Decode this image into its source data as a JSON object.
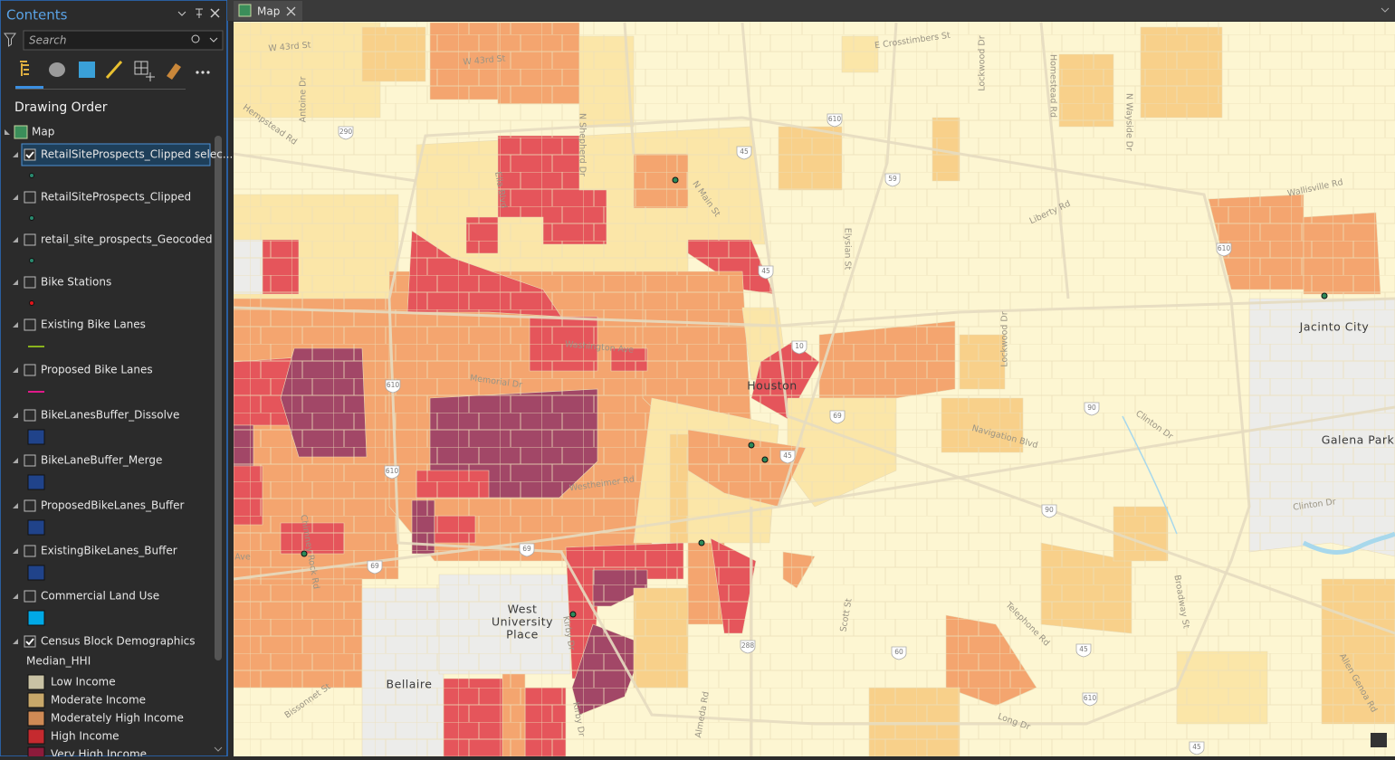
{
  "contents_pane": {
    "title": "Contents",
    "search_placeholder": "Search",
    "section": "Drawing Order",
    "map": "Map",
    "layers": [
      {
        "name": "RetailSiteProspects_Clipped selec...",
        "checked": true
      },
      {
        "name": "RetailSiteProspects_Clipped",
        "checked": false
      },
      {
        "name": "retail_site_prospects_Geocoded",
        "checked": false
      },
      {
        "name": "Bike Stations",
        "checked": false
      },
      {
        "name": "Existing Bike Lanes",
        "checked": false
      },
      {
        "name": "Proposed Bike Lanes",
        "checked": false
      },
      {
        "name": "BikeLanesBuffer_Dissolve",
        "checked": false
      },
      {
        "name": "BikeLaneBuffer_Merge",
        "checked": false
      },
      {
        "name": "ProposedBikeLanes_Buffer",
        "checked": false
      },
      {
        "name": "ExistingBikeLanes_Buffer",
        "checked": false
      },
      {
        "name": "Commercial Land Use",
        "checked": false
      },
      {
        "name": "Census Block Demographics",
        "checked": true
      }
    ],
    "legend": {
      "field": "Median_HHI",
      "classes": [
        "Low Income",
        "Moderate Income",
        "Moderately High Income",
        "High Income",
        "Very High Income"
      ]
    }
  },
  "map_view": {
    "tab": "Map",
    "places": [
      "Houston",
      "Jacinto City",
      "Galena Park",
      "West",
      "University",
      "Place",
      "Bellaire"
    ],
    "streets": [
      "W 43rd St",
      "W 43rd St",
      "E Crosstimbers St",
      "Lockwood Dr",
      "Homestead Rd",
      "N Wayside Dr",
      "Hempstead Rd",
      "Antoine Dr",
      "N Shepherd Dr",
      "Ella Blvd",
      "N Main St",
      "Elysian St",
      "Liberty Rd",
      "Wallisville Rd",
      "Washington Ave",
      "Memorial Dr",
      "Lockwood Dr",
      "Navigation Blvd",
      "Clinton Dr",
      "Clinton Dr",
      "Westheimer Rd",
      "Chimney Rock Rd",
      "Kirby Dr",
      "Kirby Dr",
      "Scott St",
      "Telephone Rd",
      "Broadway St",
      "Almeda Rd",
      "Bissonnet St",
      "Long Dr",
      "Allen Genoa Rd",
      "Ave"
    ],
    "shields": [
      "610",
      "610",
      "610",
      "610",
      "610",
      "45",
      "45",
      "45",
      "45",
      "45",
      "59",
      "10",
      "69",
      "69",
      "69",
      "90",
      "90",
      "288",
      "60",
      "290"
    ]
  }
}
